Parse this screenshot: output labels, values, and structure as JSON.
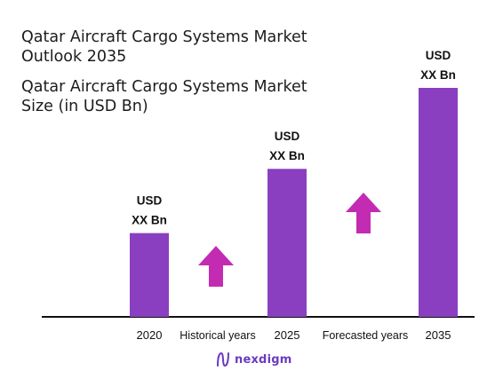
{
  "titles": {
    "line1a": "Qatar Aircraft Cargo Systems Market",
    "line1b": "Outlook 2035",
    "line2a": "Qatar Aircraft Cargo Systems Market",
    "line2b": "Size (in USD Bn)"
  },
  "chart_data": {
    "type": "bar",
    "categories": [
      "2020",
      "2025",
      "2035"
    ],
    "values": [
      30,
      53,
      82
    ],
    "ylim": [
      0,
      82
    ],
    "data_labels": [
      [
        "USD",
        "XX Bn"
      ],
      [
        "USD",
        "XX Bn"
      ],
      [
        "USD",
        "XX Bn"
      ]
    ],
    "period_labels": [
      "Historical years",
      "Forecasted years"
    ],
    "bar_color": "#8a3fc1",
    "arrow_color": "#c42bb3",
    "grid": false
  },
  "brand": {
    "name": "nexdigm",
    "color": "#6a3bc0"
  }
}
